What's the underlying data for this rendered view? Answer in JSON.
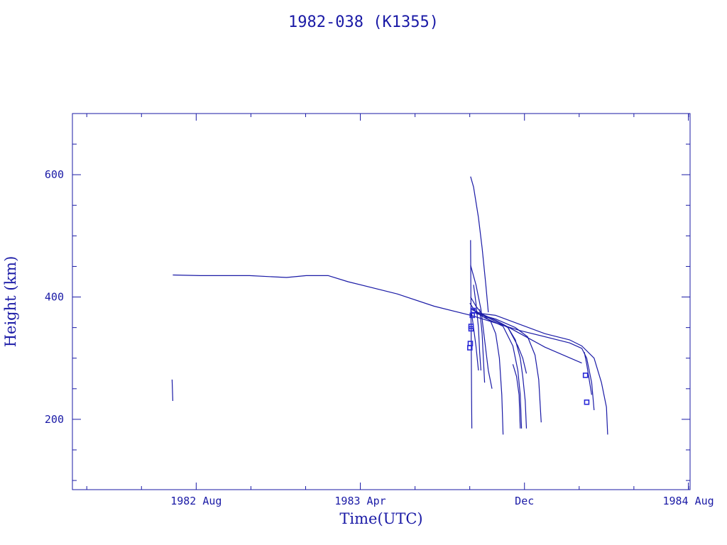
{
  "colors": {
    "ink": "#1a1aa6",
    "marker": "#2a2ad8",
    "background": "#ffffff"
  },
  "chart_data": {
    "type": "line",
    "title": "1982-038 (K1355)",
    "xlabel": "Time(UTC)",
    "ylabel": "Height (km)",
    "x_ticks": [
      {
        "label": "1982 Aug",
        "year": 1982.583
      },
      {
        "label": "1983 Apr",
        "year": 1983.25
      },
      {
        "label": "Dec",
        "year": 1983.917
      },
      {
        "label": "1984 Aug",
        "year": 1984.583
      }
    ],
    "y_ticks": [
      200,
      400,
      600
    ],
    "xlim": [
      1982.08,
      1984.59
    ],
    "ylim": [
      85,
      700
    ],
    "grid": false,
    "legend": "none",
    "series": [
      {
        "points": [
          [
            1982.485,
            265
          ],
          [
            1982.488,
            230
          ]
        ]
      },
      {
        "points": [
          [
            1982.488,
            436
          ],
          [
            1982.6,
            435
          ],
          [
            1982.8,
            435
          ],
          [
            1982.95,
            432
          ],
          [
            1983.03,
            435
          ],
          [
            1983.12,
            435
          ],
          [
            1983.2,
            425
          ],
          [
            1983.4,
            405
          ],
          [
            1983.55,
            385
          ],
          [
            1983.7,
            370
          ],
          [
            1983.9,
            345
          ],
          [
            1984.1,
            325
          ],
          [
            1984.15,
            316
          ],
          [
            1984.17,
            300
          ],
          [
            1984.19,
            260
          ],
          [
            1984.2,
            215
          ]
        ]
      },
      {
        "points": [
          [
            1983.698,
            597
          ],
          [
            1983.71,
            580
          ],
          [
            1983.73,
            530
          ],
          [
            1983.745,
            480
          ],
          [
            1983.76,
            420
          ],
          [
            1983.77,
            375
          ]
        ]
      },
      {
        "points": [
          [
            1983.698,
            493
          ],
          [
            1983.699,
            420
          ],
          [
            1983.7,
            360
          ],
          [
            1983.701,
            300
          ],
          [
            1983.702,
            240
          ],
          [
            1983.703,
            185
          ]
        ]
      },
      {
        "points": [
          [
            1983.698,
            452
          ],
          [
            1983.72,
            420
          ],
          [
            1983.74,
            380
          ],
          [
            1983.755,
            330
          ],
          [
            1983.77,
            280
          ],
          [
            1983.785,
            250
          ]
        ]
      },
      {
        "points": [
          [
            1983.698,
            400
          ],
          [
            1983.72,
            385
          ],
          [
            1983.75,
            370
          ],
          [
            1983.78,
            360
          ],
          [
            1983.8,
            340
          ],
          [
            1983.815,
            300
          ],
          [
            1983.825,
            240
          ],
          [
            1983.83,
            175
          ]
        ]
      },
      {
        "points": [
          [
            1983.695,
            390
          ],
          [
            1983.72,
            375
          ],
          [
            1983.76,
            365
          ],
          [
            1983.8,
            358
          ],
          [
            1983.83,
            352
          ],
          [
            1983.87,
            320
          ],
          [
            1983.89,
            280
          ],
          [
            1983.9,
            240
          ],
          [
            1983.905,
            185
          ]
        ]
      },
      {
        "points": [
          [
            1983.705,
            380
          ],
          [
            1983.75,
            370
          ],
          [
            1983.8,
            360
          ],
          [
            1983.85,
            350
          ],
          [
            1983.88,
            330
          ],
          [
            1983.9,
            300
          ],
          [
            1983.91,
            270
          ],
          [
            1983.92,
            230
          ],
          [
            1983.925,
            185
          ]
        ]
      },
      {
        "points": [
          [
            1983.72,
            373
          ],
          [
            1983.8,
            364
          ],
          [
            1983.88,
            350
          ],
          [
            1983.93,
            335
          ],
          [
            1983.96,
            305
          ],
          [
            1983.975,
            265
          ],
          [
            1983.985,
            195
          ]
        ]
      },
      {
        "points": [
          [
            1983.85,
            350
          ],
          [
            1983.89,
            320
          ],
          [
            1983.91,
            300
          ],
          [
            1983.925,
            275
          ]
        ]
      },
      {
        "points": [
          [
            1983.7,
            380
          ],
          [
            1983.8,
            362
          ],
          [
            1983.9,
            340
          ],
          [
            1984.0,
            318
          ],
          [
            1984.15,
            292
          ]
        ]
      },
      {
        "points": [
          [
            1983.7,
            375
          ],
          [
            1983.8,
            370
          ],
          [
            1983.9,
            355
          ],
          [
            1984.0,
            340
          ],
          [
            1984.1,
            330
          ],
          [
            1984.15,
            320
          ],
          [
            1984.2,
            300
          ],
          [
            1984.23,
            260
          ],
          [
            1984.25,
            220
          ],
          [
            1984.255,
            175
          ]
        ]
      },
      {
        "points": [
          [
            1983.71,
            420
          ],
          [
            1983.72,
            390
          ],
          [
            1983.73,
            350
          ],
          [
            1983.735,
            310
          ],
          [
            1983.74,
            280
          ]
        ]
      },
      {
        "points": [
          [
            1983.7,
            380
          ],
          [
            1983.71,
            350
          ],
          [
            1983.72,
            320
          ],
          [
            1983.73,
            280
          ]
        ]
      },
      {
        "points": [
          [
            1983.735,
            380
          ],
          [
            1983.745,
            340
          ],
          [
            1983.75,
            300
          ],
          [
            1983.755,
            260
          ]
        ]
      },
      {
        "points": [
          [
            1983.87,
            290
          ],
          [
            1983.885,
            270
          ],
          [
            1983.895,
            240
          ],
          [
            1983.9,
            185
          ]
        ]
      },
      {
        "points": [
          [
            1984.16,
            310
          ],
          [
            1984.17,
            290
          ],
          [
            1984.18,
            265
          ],
          [
            1984.19,
            240
          ]
        ]
      }
    ],
    "markers": [
      [
        1983.695,
        317
      ],
      [
        1983.697,
        324
      ],
      [
        1983.7,
        348
      ],
      [
        1983.7,
        352
      ],
      [
        1983.705,
        370
      ],
      [
        1983.708,
        378
      ],
      [
        1984.165,
        272
      ],
      [
        1984.17,
        228
      ]
    ]
  }
}
